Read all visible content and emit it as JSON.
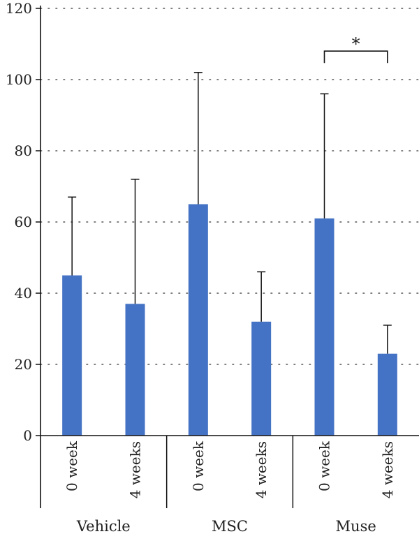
{
  "chart_data": {
    "type": "bar",
    "groups": [
      "Vehicle",
      "MSC",
      "Muse"
    ],
    "categories": [
      "0 week",
      "4 weeks"
    ],
    "series": [
      {
        "group": "Vehicle",
        "values": [
          45,
          37
        ],
        "errors": [
          22,
          35
        ]
      },
      {
        "group": "MSC",
        "values": [
          65,
          32
        ],
        "errors": [
          37,
          14
        ]
      },
      {
        "group": "Muse",
        "values": [
          61,
          23
        ],
        "errors": [
          35,
          8
        ]
      }
    ],
    "ylim": [
      0,
      120
    ],
    "yticks": [
      0,
      20,
      40,
      60,
      80,
      100,
      120
    ],
    "grid": true,
    "bar_color": "#4472c4",
    "annotation": {
      "text": "*",
      "group": "Muse",
      "between": [
        "0 week",
        "4 weeks"
      ],
      "y": 108
    }
  }
}
